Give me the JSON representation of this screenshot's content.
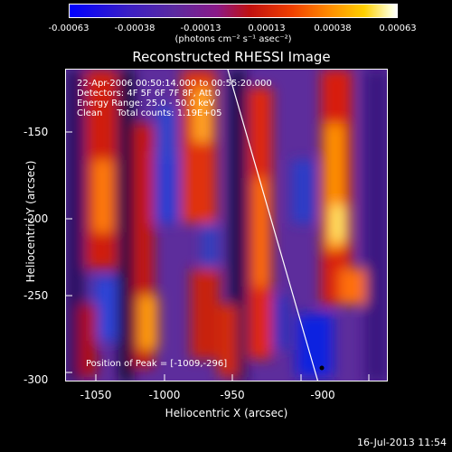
{
  "colorbar": {
    "ticks": [
      "-0.00063",
      "-0.00038",
      "-0.00013",
      "0.00013",
      "0.00038",
      "0.00063"
    ],
    "units": "(photons cm⁻² s⁻¹ asec⁻²)"
  },
  "title": "Reconstructed RHESSI Image",
  "info": {
    "line1": "22-Apr-2006 00:50:14.000 to 00:55:20.000",
    "line2": "Detectors: 4F 5F 6F 7F 8F, Att 0",
    "line3": "Energy Range: 25.0 - 50.0 keV",
    "line4": "Clean     Total counts: 1.19E+05"
  },
  "peak_label": "Position of Peak = [-1009,-296]",
  "axes": {
    "xlabel": "Heliocentric X (arcsec)",
    "ylabel": "Heliocentric Y (arcsec)",
    "xticks": [
      "-1050",
      "-1000",
      "-950",
      "-900"
    ],
    "yticks": [
      "-150",
      "-200",
      "-250",
      "-300"
    ]
  },
  "timestamp": "16-Jul-2013 11:54"
}
